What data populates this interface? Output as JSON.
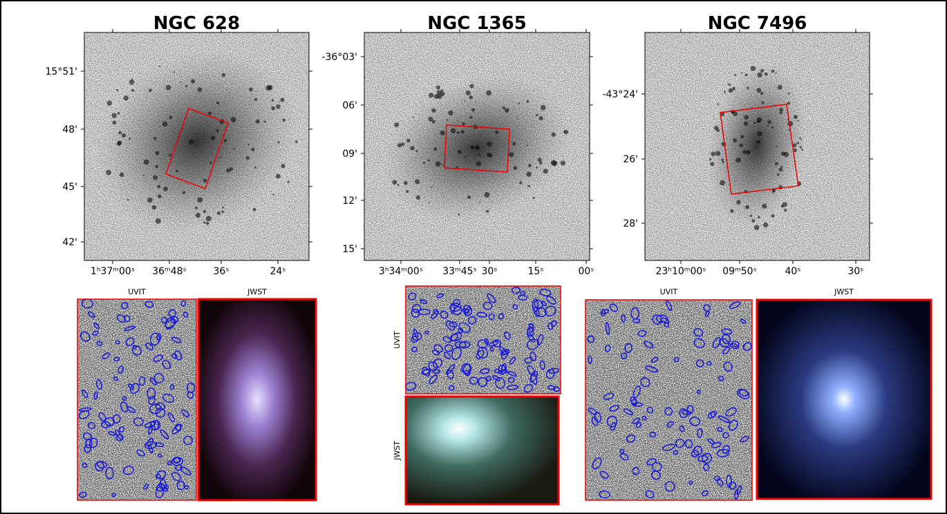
{
  "panels": [
    {
      "title": "NGC 628",
      "dec_labels": [
        "15°51'",
        "48'",
        "45'",
        "42'"
      ],
      "ra_labels": [
        "1ʰ37ᵐ00ˢ",
        "36ᵐ48ˢ",
        "36ˢ",
        "24ˢ"
      ],
      "inset_labels": [
        "UVIT",
        "JWST"
      ]
    },
    {
      "title": "NGC 1365",
      "dec_labels": [
        "-36°03'",
        "06'",
        "09'",
        "12'",
        "15'"
      ],
      "ra_labels": [
        "3ʰ34ᵐ00ˢ",
        "33ᵐ45ˢ",
        "30ˢ",
        "15ˢ",
        "00ˢ"
      ],
      "inset_labels": [
        "UVIT",
        "JWST"
      ]
    },
    {
      "title": "NGC 7496",
      "dec_labels": [
        "-43°24'",
        "26'",
        "28'"
      ],
      "ra_labels": [
        "23ʰ10ᵐ00ˢ",
        "09ᵐ50ˢ",
        "40ˢ",
        "30ˢ"
      ],
      "inset_labels": [
        "UVIT",
        "JWST"
      ]
    }
  ]
}
